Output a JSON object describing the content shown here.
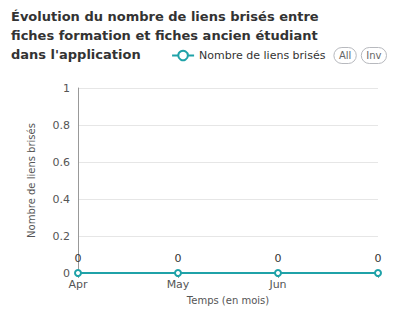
{
  "chart_data": {
    "type": "line",
    "title": "Évolution du nombre de liens brisés entre fiches formation et fiches ancien étudiant dans l'application",
    "x_label": "Temps (en mois)",
    "y_label": "Nombre de liens brisés",
    "categories": [
      "Apr",
      "May",
      "Jun",
      null
    ],
    "series": [
      {
        "name": "Nombre de liens brisés",
        "color": "#1fa2a8",
        "marker": "circle",
        "line_style": "solid",
        "values": [
          0,
          0,
          0,
          0
        ]
      }
    ],
    "ylim": [
      0,
      1
    ],
    "yticks": [
      0,
      0.2,
      0.4,
      0.6,
      0.8,
      1
    ],
    "grid": true,
    "legend": "top-right",
    "legend_selector": [
      "All",
      "Inv"
    ],
    "data_labels": true
  }
}
